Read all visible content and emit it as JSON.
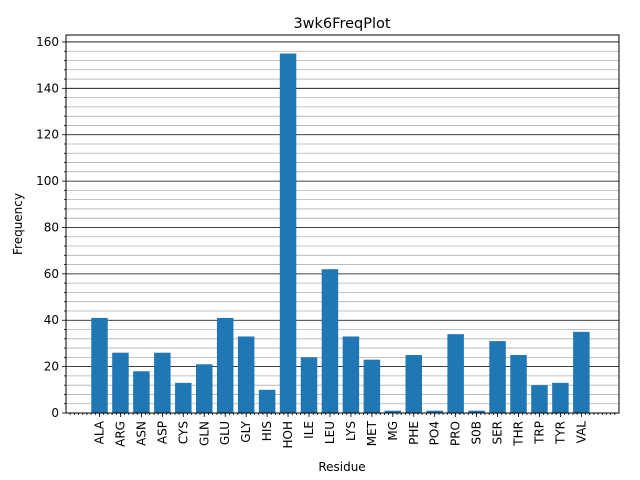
{
  "chart_data": {
    "type": "bar",
    "title": "3wk6FreqPlot",
    "xlabel": "Residue",
    "ylabel": "Frequency",
    "categories": [
      "ALA",
      "ARG",
      "ASN",
      "ASP",
      "CYS",
      "GLN",
      "GLU",
      "GLY",
      "HIS",
      "HOH",
      "ILE",
      "LEU",
      "LYS",
      "MET",
      "MG",
      "PHE",
      "PO4",
      "PRO",
      "S0B",
      "SER",
      "THR",
      "TRP",
      "TYR",
      "VAL"
    ],
    "values": [
      41,
      26,
      18,
      26,
      13,
      21,
      41,
      33,
      10,
      155,
      24,
      62,
      33,
      23,
      1,
      25,
      1,
      34,
      1,
      31,
      25,
      12,
      13,
      35
    ],
    "ylim": [
      0,
      163
    ],
    "yticks": [
      0,
      20,
      40,
      60,
      80,
      100,
      120,
      140,
      160
    ],
    "grid": "major and minor horizontal",
    "bar_color": "#1f77b4",
    "major_grid_color": "#000000",
    "minor_grid_color": "#b0b0b0"
  }
}
